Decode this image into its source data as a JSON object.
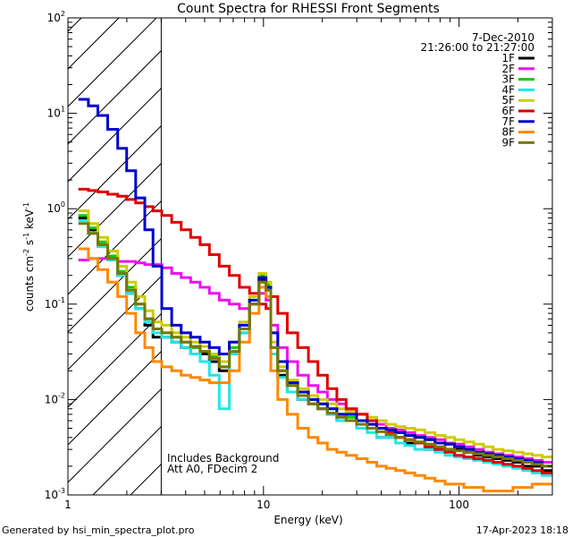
{
  "chart_data": {
    "type": "line",
    "title": "Count Spectra for RHESSI Front Segments",
    "xlabel": "Energy (keV)",
    "ylabel_main": "counts cm",
    "ylabel_exp1": "-2",
    "ylabel_mid1": " s",
    "ylabel_exp2": "-1",
    "ylabel_mid2": " keV",
    "ylabel_exp3": "-1",
    "x_scale": "log",
    "y_scale": "log",
    "xlim": [
      1,
      300
    ],
    "ylim": [
      0.001,
      100
    ],
    "x_tick_labels": [
      {
        "value": 1,
        "text": "1"
      },
      {
        "value": 10,
        "text": "10"
      },
      {
        "value": 100,
        "text": "100"
      }
    ],
    "y_tick_labels": [
      {
        "value": 0.001,
        "base": "10",
        "exp": "-3"
      },
      {
        "value": 0.01,
        "base": "10",
        "exp": "-2"
      },
      {
        "value": 0.1,
        "base": "10",
        "exp": "-1"
      },
      {
        "value": 1,
        "base": "10",
        "exp": "0"
      },
      {
        "value": 10,
        "base": "10",
        "exp": "1"
      },
      {
        "value": 100,
        "base": "10",
        "exp": "2"
      }
    ],
    "date": "7-Dec-2010",
    "time_range": "21:26:00 to 21:27:00",
    "shaded_region_max_keV": 3,
    "annotations": [
      "Includes Background",
      "Att A0, FDecim 2"
    ],
    "footer_left": "Generated by hsi_min_spectra_plot.pro",
    "footer_right": "17-Apr-2023 18:18",
    "energies": [
      1.2,
      1.35,
      1.5,
      1.7,
      1.9,
      2.1,
      2.35,
      2.6,
      2.85,
      3.2,
      3.6,
      4.0,
      4.5,
      5.0,
      5.6,
      6.3,
      7.1,
      8.0,
      9.0,
      10.0,
      10.6,
      11.2,
      12.5,
      14.0,
      16.0,
      18.0,
      20.0,
      22.5,
      25.0,
      28.0,
      32.0,
      36.0,
      40.0,
      45.0,
      50.0,
      56.0,
      63.0,
      71.0,
      80.0,
      90.0,
      100.0,
      112.0,
      126.0,
      141.0,
      158.0,
      178.0,
      200.0,
      224.0,
      251.0,
      282.0
    ],
    "series": [
      {
        "name": "1F",
        "color": "#000000",
        "values": [
          0.8,
          0.6,
          0.42,
          0.3,
          0.2,
          0.13,
          0.09,
          0.06,
          0.045,
          0.045,
          0.04,
          0.035,
          0.03,
          0.03,
          0.025,
          0.02,
          0.03,
          0.05,
          0.1,
          0.18,
          0.15,
          0.03,
          0.018,
          0.012,
          0.01,
          0.009,
          0.008,
          0.007,
          0.006,
          0.006,
          0.005,
          0.005,
          0.004,
          0.004,
          0.004,
          0.0035,
          0.0035,
          0.003,
          0.003,
          0.003,
          0.003,
          0.0028,
          0.0026,
          0.0025,
          0.0024,
          0.0023,
          0.0022,
          0.002,
          0.002,
          0.0018
        ]
      },
      {
        "name": "2F",
        "color": "#ee11ee",
        "values": [
          0.29,
          0.3,
          0.3,
          0.29,
          0.28,
          0.28,
          0.27,
          0.26,
          0.26,
          0.24,
          0.21,
          0.19,
          0.17,
          0.15,
          0.13,
          0.11,
          0.1,
          0.09,
          0.1,
          0.13,
          0.11,
          0.06,
          0.035,
          0.025,
          0.018,
          0.014,
          0.012,
          0.01,
          0.009,
          0.008,
          0.007,
          0.006,
          0.0055,
          0.005,
          0.0048,
          0.0045,
          0.0042,
          0.004,
          0.0038,
          0.0035,
          0.0034,
          0.0032,
          0.003,
          0.0028,
          0.0027,
          0.0026,
          0.0025,
          0.0024,
          0.0023,
          0.0022
        ]
      },
      {
        "name": "3F",
        "color": "#00cc00",
        "values": [
          0.85,
          0.63,
          0.45,
          0.32,
          0.22,
          0.15,
          0.1,
          0.07,
          0.055,
          0.05,
          0.045,
          0.04,
          0.035,
          0.032,
          0.028,
          0.022,
          0.035,
          0.06,
          0.11,
          0.2,
          0.16,
          0.035,
          0.02,
          0.014,
          0.011,
          0.01,
          0.009,
          0.008,
          0.007,
          0.0065,
          0.006,
          0.0055,
          0.005,
          0.0048,
          0.0045,
          0.0042,
          0.004,
          0.0038,
          0.0035,
          0.0034,
          0.0032,
          0.003,
          0.0028,
          0.0027,
          0.0026,
          0.0025,
          0.0024,
          0.0023,
          0.0022,
          0.002
        ]
      },
      {
        "name": "4F",
        "color": "#22e6e6",
        "values": [
          0.75,
          0.56,
          0.4,
          0.29,
          0.2,
          0.13,
          0.09,
          0.065,
          0.05,
          0.045,
          0.04,
          0.035,
          0.03,
          0.025,
          0.018,
          0.008,
          0.03,
          0.05,
          0.1,
          0.17,
          0.14,
          0.03,
          0.017,
          0.012,
          0.01,
          0.009,
          0.008,
          0.007,
          0.006,
          0.006,
          0.005,
          0.0045,
          0.004,
          0.004,
          0.0035,
          0.0033,
          0.003,
          0.003,
          0.0028,
          0.0026,
          0.0025,
          0.0024,
          0.0023,
          0.0022,
          0.0021,
          0.002,
          0.0019,
          0.0018,
          0.0017,
          0.0016
        ]
      },
      {
        "name": "5F",
        "color": "#cccc00",
        "values": [
          0.95,
          0.7,
          0.5,
          0.36,
          0.25,
          0.17,
          0.12,
          0.085,
          0.065,
          0.06,
          0.05,
          0.045,
          0.04,
          0.036,
          0.03,
          0.025,
          0.04,
          0.065,
          0.12,
          0.21,
          0.17,
          0.04,
          0.022,
          0.016,
          0.013,
          0.011,
          0.01,
          0.009,
          0.008,
          0.0075,
          0.007,
          0.0065,
          0.006,
          0.0055,
          0.0052,
          0.005,
          0.0048,
          0.0045,
          0.0042,
          0.004,
          0.0038,
          0.0036,
          0.0034,
          0.0032,
          0.003,
          0.0029,
          0.0028,
          0.0027,
          0.0026,
          0.0025
        ]
      },
      {
        "name": "6F",
        "color": "#dd0000",
        "values": [
          1.6,
          1.55,
          1.5,
          1.42,
          1.35,
          1.25,
          1.15,
          1.05,
          0.95,
          0.85,
          0.72,
          0.6,
          0.5,
          0.42,
          0.33,
          0.25,
          0.2,
          0.15,
          0.13,
          0.1,
          0.09,
          0.12,
          0.08,
          0.05,
          0.035,
          0.025,
          0.018,
          0.013,
          0.01,
          0.008,
          0.007,
          0.006,
          0.005,
          0.0045,
          0.004,
          0.0038,
          0.0035,
          0.0032,
          0.003,
          0.0028,
          0.0026,
          0.0025,
          0.0024,
          0.0023,
          0.0022,
          0.0021,
          0.002,
          0.0019,
          0.0018,
          0.0017
        ]
      },
      {
        "name": "7F",
        "color": "#0000cc",
        "values": [
          14.0,
          12.0,
          9.5,
          6.8,
          4.3,
          2.5,
          1.3,
          0.6,
          0.25,
          0.09,
          0.06,
          0.05,
          0.045,
          0.04,
          0.035,
          0.03,
          0.04,
          0.06,
          0.11,
          0.19,
          0.15,
          0.05,
          0.025,
          0.015,
          0.012,
          0.01,
          0.009,
          0.008,
          0.007,
          0.007,
          0.006,
          0.0055,
          0.005,
          0.0048,
          0.0045,
          0.0042,
          0.004,
          0.0038,
          0.0035,
          0.0034,
          0.0032,
          0.003,
          0.0028,
          0.0027,
          0.0026,
          0.0025,
          0.0024,
          0.0023,
          0.0022,
          0.002
        ]
      },
      {
        "name": "8F",
        "color": "#ff8800",
        "values": [
          0.38,
          0.3,
          0.23,
          0.17,
          0.12,
          0.08,
          0.05,
          0.035,
          0.025,
          0.022,
          0.02,
          0.018,
          0.017,
          0.016,
          0.015,
          0.015,
          0.02,
          0.04,
          0.08,
          0.15,
          0.12,
          0.02,
          0.01,
          0.007,
          0.005,
          0.004,
          0.0035,
          0.003,
          0.0028,
          0.0026,
          0.0024,
          0.0022,
          0.002,
          0.0019,
          0.0018,
          0.0017,
          0.0016,
          0.0015,
          0.0014,
          0.0013,
          0.0013,
          0.0012,
          0.0012,
          0.0011,
          0.0011,
          0.0011,
          0.0012,
          0.0012,
          0.0013,
          0.0013
        ]
      },
      {
        "name": "9F",
        "color": "#777700",
        "values": [
          0.7,
          0.55,
          0.42,
          0.3,
          0.21,
          0.14,
          0.1,
          0.07,
          0.055,
          0.05,
          0.045,
          0.04,
          0.036,
          0.032,
          0.027,
          0.022,
          0.032,
          0.055,
          0.1,
          0.17,
          0.14,
          0.035,
          0.02,
          0.014,
          0.011,
          0.009,
          0.008,
          0.0072,
          0.0065,
          0.006,
          0.0055,
          0.005,
          0.0046,
          0.0043,
          0.004,
          0.0038,
          0.0036,
          0.0034,
          0.0032,
          0.003,
          0.0029,
          0.0028,
          0.0027,
          0.0026,
          0.0025,
          0.0024,
          0.0023,
          0.0022,
          0.0021,
          0.002
        ]
      }
    ]
  }
}
